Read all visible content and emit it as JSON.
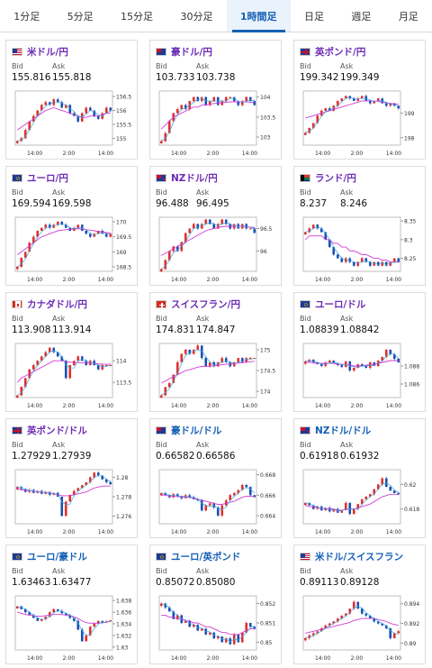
{
  "tabs": [
    "1分足",
    "5分足",
    "15分足",
    "30分足",
    "1時間足",
    "日足",
    "週足",
    "月足"
  ],
  "active_tab": 4,
  "labels": {
    "bid": "Bid",
    "ask": "Ask"
  },
  "cards": [
    {
      "name": "米ドル/円",
      "flag": "us-jp",
      "bid": "155.816",
      "ask": "155.818",
      "ticks": [
        "156.5",
        "156",
        "155.5",
        "155"
      ],
      "tvals": [
        156.5,
        156,
        155.5,
        155
      ],
      "ymin": 154.75,
      "ymax": 156.7,
      "xt": [
        "14:00",
        "2:00",
        "14:00"
      ],
      "seed": 1,
      "path": [
        154.9,
        155.0,
        155.3,
        155.6,
        155.8,
        156.0,
        156.2,
        156.3,
        156.2,
        156.4,
        156.3,
        156.1,
        156.2,
        155.9,
        155.8,
        155.6,
        155.9,
        156.1,
        156.0,
        155.8,
        155.7,
        155.9,
        156.1,
        156.0
      ],
      "ma": [
        155.3,
        155.4,
        155.5,
        155.6,
        155.7,
        155.8,
        155.9,
        156.0,
        156.05,
        156.1,
        156.05,
        156.0,
        155.95,
        155.9,
        155.85,
        155.8,
        155.75,
        155.75,
        155.8,
        155.8,
        155.8,
        155.85,
        155.9,
        155.9
      ]
    },
    {
      "name": "豪ドル/円",
      "flag": "au-jp",
      "bid": "103.733",
      "ask": "103.738",
      "ticks": [
        "104",
        "103.5",
        "103"
      ],
      "tvals": [
        104,
        103.5,
        103
      ],
      "ymin": 102.8,
      "ymax": 104.15,
      "xt": [
        "14:00",
        "2:00",
        "14:00"
      ],
      "seed": 2,
      "path": [
        102.9,
        103.1,
        103.4,
        103.6,
        103.7,
        103.8,
        103.7,
        103.9,
        104.0,
        103.9,
        104.0,
        103.8,
        103.9,
        104.0,
        103.8,
        103.9,
        104.0,
        104.0,
        103.9,
        103.8,
        103.9,
        104.0,
        103.9,
        103.8
      ],
      "ma": [
        103.2,
        103.3,
        103.4,
        103.5,
        103.55,
        103.6,
        103.65,
        103.7,
        103.75,
        103.75,
        103.8,
        103.8,
        103.82,
        103.84,
        103.85,
        103.86,
        103.87,
        103.88,
        103.88,
        103.88,
        103.88,
        103.88,
        103.87,
        103.86
      ]
    },
    {
      "name": "英ポンド/円",
      "flag": "gb-jp",
      "bid": "199.342",
      "ask": "199.349",
      "ticks": [
        "199",
        "198"
      ],
      "tvals": [
        199,
        198
      ],
      "ymin": 197.7,
      "ymax": 199.9,
      "xt": [
        "14:00",
        "2:00",
        "14:00"
      ],
      "seed": 3,
      "path": [
        198.2,
        198.4,
        198.6,
        198.9,
        199.1,
        199.2,
        199.1,
        199.3,
        199.5,
        199.6,
        199.7,
        199.6,
        199.5,
        199.6,
        199.7,
        199.5,
        199.4,
        199.5,
        199.6,
        199.4,
        199.3,
        199.4,
        199.3,
        199.2
      ],
      "ma": [
        198.8,
        198.85,
        198.9,
        198.95,
        199.0,
        199.05,
        199.1,
        199.15,
        199.2,
        199.25,
        199.3,
        199.35,
        199.4,
        199.45,
        199.5,
        199.5,
        199.5,
        199.5,
        199.48,
        199.45,
        199.42,
        199.4,
        199.38,
        199.36
      ]
    },
    {
      "name": "ユーロ/円",
      "flag": "eu-jp",
      "bid": "169.594",
      "ask": "169.598",
      "ticks": [
        "170",
        "169.5",
        "169",
        "168.5"
      ],
      "tvals": [
        170,
        169.5,
        169,
        168.5
      ],
      "ymin": 168.35,
      "ymax": 170.15,
      "xt": [
        "14:00",
        "2:00",
        "14:00"
      ],
      "seed": 4,
      "path": [
        168.5,
        168.8,
        169.0,
        169.3,
        169.5,
        169.7,
        169.8,
        169.9,
        169.8,
        169.9,
        170.0,
        169.9,
        169.8,
        169.7,
        169.8,
        169.9,
        169.7,
        169.6,
        169.5,
        169.6,
        169.7,
        169.6,
        169.5,
        169.6
      ],
      "ma": [
        168.9,
        169.0,
        169.1,
        169.2,
        169.3,
        169.4,
        169.5,
        169.55,
        169.6,
        169.65,
        169.7,
        169.72,
        169.74,
        169.75,
        169.76,
        169.77,
        169.76,
        169.74,
        169.72,
        169.7,
        169.68,
        169.66,
        169.64,
        169.62
      ]
    },
    {
      "name": "NZドル/円",
      "flag": "nz-jp",
      "bid": "96.488",
      "ask": "96.495",
      "ticks": [
        "96.5",
        "96"
      ],
      "tvals": [
        96.5,
        96
      ],
      "ymin": 95.55,
      "ymax": 96.75,
      "xt": [
        "14:00",
        "2:00",
        "14:00"
      ],
      "seed": 5,
      "path": [
        95.6,
        95.8,
        96.0,
        96.1,
        96.0,
        96.2,
        96.4,
        96.5,
        96.6,
        96.5,
        96.6,
        96.7,
        96.6,
        96.5,
        96.6,
        96.7,
        96.6,
        96.5,
        96.6,
        96.5,
        96.6,
        96.5,
        96.5,
        96.4
      ],
      "ma": [
        95.9,
        95.95,
        96.0,
        96.05,
        96.1,
        96.15,
        96.2,
        96.25,
        96.3,
        96.35,
        96.4,
        96.45,
        96.48,
        96.5,
        96.52,
        96.54,
        96.55,
        96.55,
        96.55,
        96.55,
        96.55,
        96.54,
        96.53,
        96.52
      ]
    },
    {
      "name": "ランド/円",
      "flag": "za-jp",
      "bid": "8.237",
      "ask": "8.246",
      "ticks": [
        "8.35",
        "8.3",
        "8.25"
      ],
      "tvals": [
        8.35,
        8.3,
        8.25
      ],
      "ymin": 8.215,
      "ymax": 8.36,
      "xt": [
        "14:00",
        "2:00",
        "14:00"
      ],
      "seed": 6,
      "path": [
        8.32,
        8.33,
        8.34,
        8.33,
        8.32,
        8.3,
        8.28,
        8.26,
        8.25,
        8.24,
        8.25,
        8.24,
        8.23,
        8.24,
        8.25,
        8.24,
        8.23,
        8.24,
        8.23,
        8.24,
        8.23,
        8.24,
        8.25,
        8.24
      ],
      "ma": [
        8.3,
        8.31,
        8.31,
        8.31,
        8.31,
        8.3,
        8.3,
        8.29,
        8.29,
        8.28,
        8.28,
        8.27,
        8.27,
        8.265,
        8.26,
        8.26,
        8.255,
        8.25,
        8.25,
        8.245,
        8.245,
        8.24,
        8.24,
        8.24
      ]
    },
    {
      "name": "カナダドル/円",
      "flag": "ca-jp",
      "bid": "113.908",
      "ask": "113.914",
      "ticks": [
        "114",
        "113.5"
      ],
      "tvals": [
        114,
        113.5
      ],
      "ymin": 113.15,
      "ymax": 114.4,
      "xt": [
        "14:00",
        "2:00",
        "14:00"
      ],
      "seed": 7,
      "path": [
        113.2,
        113.4,
        113.6,
        113.8,
        113.9,
        114.0,
        114.1,
        114.2,
        114.3,
        114.2,
        114.1,
        114.0,
        113.6,
        113.9,
        114.0,
        114.1,
        114.0,
        113.9,
        114.0,
        113.9,
        113.8,
        113.9,
        113.9,
        113.9
      ],
      "ma": [
        113.5,
        113.6,
        113.65,
        113.7,
        113.75,
        113.8,
        113.85,
        113.9,
        113.95,
        114.0,
        114.0,
        114.0,
        113.98,
        113.97,
        113.96,
        113.96,
        113.95,
        113.95,
        113.95,
        113.94,
        113.93,
        113.92,
        113.92,
        113.92
      ]
    },
    {
      "name": "スイスフラン/円",
      "flag": "ch-jp",
      "bid": "174.831",
      "ask": "174.847",
      "ticks": [
        "175",
        "174.5",
        "174"
      ],
      "tvals": [
        175,
        174.5,
        174
      ],
      "ymin": 173.85,
      "ymax": 175.15,
      "xt": [
        "14:00",
        "2:00",
        "14:00"
      ],
      "seed": 8,
      "path": [
        173.9,
        174.1,
        174.2,
        174.4,
        174.7,
        174.9,
        175.0,
        174.9,
        175.0,
        175.1,
        174.8,
        174.6,
        174.7,
        174.6,
        174.7,
        174.8,
        174.7,
        174.6,
        174.7,
        174.8,
        174.7,
        174.8,
        174.8,
        174.8
      ],
      "ma": [
        174.2,
        174.25,
        174.3,
        174.35,
        174.4,
        174.45,
        174.5,
        174.52,
        174.55,
        174.58,
        174.6,
        174.6,
        174.6,
        174.62,
        174.63,
        174.64,
        174.65,
        174.66,
        174.67,
        174.68,
        174.69,
        174.7,
        174.71,
        174.72
      ]
    },
    {
      "name": "ユーロ/ドル",
      "flag": "eu-us",
      "bid": "1.08839",
      "ask": "1.08842",
      "ticks": [
        "1.088",
        "1.086"
      ],
      "tvals": [
        1.088,
        1.086
      ],
      "ymin": 1.0845,
      "ymax": 1.0905,
      "xt": [
        "14:00",
        "2:00",
        "14:00"
      ],
      "seed": 9,
      "path": [
        1.0885,
        1.0887,
        1.0884,
        1.0882,
        1.088,
        1.0884,
        1.0886,
        1.0883,
        1.0881,
        1.0879,
        1.0885,
        1.0875,
        1.0878,
        1.0882,
        1.088,
        1.0878,
        1.0884,
        1.088,
        1.0886,
        1.089,
        1.0898,
        1.0893,
        1.0888,
        1.0884
      ],
      "ma": [
        1.0884,
        1.0884,
        1.0884,
        1.0883,
        1.0883,
        1.0883,
        1.0883,
        1.0883,
        1.0882,
        1.0882,
        1.0881,
        1.0881,
        1.088,
        1.088,
        1.088,
        1.0881,
        1.0881,
        1.0882,
        1.0883,
        1.0884,
        1.0885,
        1.0886,
        1.0886,
        1.0886
      ]
    },
    {
      "name": "英ポンド/ドル",
      "flag": "gb-us",
      "bid": "1.27929",
      "ask": "1.27939",
      "ticks": [
        "1.28",
        "1.278",
        "1.276"
      ],
      "tvals": [
        1.28,
        1.278,
        1.276
      ],
      "ymin": 1.2752,
      "ymax": 1.2808,
      "xt": [
        "14:00",
        "2:00",
        "14:00"
      ],
      "seed": 10,
      "path": [
        1.279,
        1.2788,
        1.2785,
        1.2787,
        1.2784,
        1.2786,
        1.2783,
        1.2785,
        1.2782,
        1.2784,
        1.278,
        1.276,
        1.2775,
        1.2782,
        1.2786,
        1.2789,
        1.2792,
        1.2795,
        1.28,
        1.2805,
        1.2802,
        1.2798,
        1.2795,
        1.2793
      ],
      "ma": [
        1.2788,
        1.2787,
        1.2787,
        1.2786,
        1.2786,
        1.2785,
        1.2785,
        1.2784,
        1.2784,
        1.2783,
        1.2782,
        1.2781,
        1.2781,
        1.2781,
        1.2782,
        1.2783,
        1.2784,
        1.2785,
        1.2787,
        1.2789,
        1.279,
        1.2791,
        1.2791,
        1.2791
      ]
    },
    {
      "name": "豪ドル/ドル",
      "flag": "au-us",
      "bid": "0.66582",
      "ask": "0.66586",
      "ticks": [
        "0.668",
        "0.666",
        "0.664"
      ],
      "tvals": [
        0.668,
        0.666,
        0.664
      ],
      "ymin": 0.6632,
      "ymax": 0.6685,
      "xt": [
        "14:00",
        "2:00",
        "14:00"
      ],
      "seed": 11,
      "path": [
        0.6662,
        0.666,
        0.6658,
        0.6661,
        0.6659,
        0.6657,
        0.666,
        0.6658,
        0.6656,
        0.6655,
        0.6645,
        0.665,
        0.6652,
        0.6648,
        0.664,
        0.665,
        0.6655,
        0.666,
        0.6662,
        0.6665,
        0.667,
        0.6668,
        0.666,
        0.6658
      ],
      "ma": [
        0.666,
        0.666,
        0.6659,
        0.6659,
        0.6659,
        0.6658,
        0.6658,
        0.6658,
        0.6657,
        0.6656,
        0.6655,
        0.6654,
        0.6653,
        0.6652,
        0.6651,
        0.6651,
        0.6652,
        0.6653,
        0.6654,
        0.6656,
        0.6658,
        0.6659,
        0.6659,
        0.6659
      ]
    },
    {
      "name": "NZドル/ドル",
      "flag": "nz-us",
      "bid": "0.61918",
      "ask": "0.61932",
      "ticks": [
        "0.62",
        "0.618"
      ],
      "tvals": [
        0.62,
        0.618
      ],
      "ymin": 0.6168,
      "ymax": 0.6212,
      "xt": [
        "14:00",
        "2:00",
        "14:00"
      ],
      "seed": 12,
      "path": [
        0.6185,
        0.6183,
        0.618,
        0.6182,
        0.6179,
        0.6181,
        0.6178,
        0.618,
        0.6177,
        0.6179,
        0.6185,
        0.6176,
        0.618,
        0.6184,
        0.6188,
        0.619,
        0.6192,
        0.6196,
        0.62,
        0.6205,
        0.6198,
        0.6195,
        0.6193,
        0.6192
      ],
      "ma": [
        0.6183,
        0.6182,
        0.6182,
        0.6181,
        0.6181,
        0.618,
        0.618,
        0.618,
        0.6179,
        0.6179,
        0.618,
        0.618,
        0.618,
        0.6181,
        0.6182,
        0.6183,
        0.6184,
        0.6186,
        0.6188,
        0.619,
        0.6191,
        0.6192,
        0.6192,
        0.6192
      ]
    },
    {
      "name": "ユーロ/豪ドル",
      "flag": "eu-au",
      "bid": "1.63463",
      "ask": "1.63477",
      "ticks": [
        "1.638",
        "1.636",
        "1.634",
        "1.632",
        "1.63"
      ],
      "tvals": [
        1.638,
        1.636,
        1.634,
        1.632,
        1.63
      ],
      "ymin": 1.6295,
      "ymax": 1.6388,
      "xt": [
        "14:00",
        "2:00",
        "14:00"
      ],
      "seed": 13,
      "path": [
        1.637,
        1.6365,
        1.636,
        1.6355,
        1.635,
        1.6345,
        1.6348,
        1.6352,
        1.636,
        1.6365,
        1.6362,
        1.6358,
        1.6355,
        1.635,
        1.6345,
        1.633,
        1.631,
        1.632,
        1.6335,
        1.634,
        1.6345,
        1.6342,
        1.6344,
        1.6346
      ],
      "ma": [
        1.636,
        1.6358,
        1.6356,
        1.6355,
        1.6354,
        1.6353,
        1.6353,
        1.6354,
        1.6355,
        1.6356,
        1.6356,
        1.6356,
        1.6355,
        1.6354,
        1.6352,
        1.6349,
        1.6345,
        1.6342,
        1.6341,
        1.6341,
        1.6341,
        1.6342,
        1.6343,
        1.6344
      ]
    },
    {
      "name": "ユーロ/英ポンド",
      "flag": "eu-gb",
      "bid": "0.85072",
      "ask": "0.85080",
      "ticks": [
        "0.852",
        "0.851",
        "0.85"
      ],
      "tvals": [
        0.852,
        0.851,
        0.85
      ],
      "ymin": 0.8496,
      "ymax": 0.8524,
      "xt": [
        "14:00",
        "2:00",
        "14:00"
      ],
      "seed": 14,
      "path": [
        0.852,
        0.8518,
        0.8516,
        0.8512,
        0.8514,
        0.851,
        0.8511,
        0.8508,
        0.8509,
        0.8506,
        0.8507,
        0.8504,
        0.8505,
        0.8502,
        0.8503,
        0.85,
        0.8502,
        0.8499,
        0.8504,
        0.85,
        0.8505,
        0.851,
        0.8508,
        0.8507
      ],
      "ma": [
        0.8514,
        0.8514,
        0.8513,
        0.8513,
        0.8512,
        0.8512,
        0.8511,
        0.8511,
        0.851,
        0.851,
        0.8509,
        0.8508,
        0.8508,
        0.8507,
        0.8506,
        0.8505,
        0.8505,
        0.8504,
        0.8504,
        0.8504,
        0.8505,
        0.8506,
        0.8507,
        0.8507
      ]
    },
    {
      "name": "米ドル/スイスフラン",
      "flag": "us-ch",
      "bid": "0.89113",
      "ask": "0.89128",
      "ticks": [
        "0.894",
        "0.892",
        "0.89"
      ],
      "tvals": [
        0.894,
        0.892,
        0.89
      ],
      "ymin": 0.8893,
      "ymax": 0.8948,
      "xt": [
        "14:00",
        "2:00",
        "14:00"
      ],
      "seed": 15,
      "path": [
        0.8905,
        0.8908,
        0.891,
        0.8912,
        0.8915,
        0.8918,
        0.892,
        0.8922,
        0.8925,
        0.8928,
        0.893,
        0.8935,
        0.8942,
        0.8935,
        0.893,
        0.8928,
        0.8925,
        0.8922,
        0.892,
        0.8918,
        0.8915,
        0.8905,
        0.891,
        0.8912
      ],
      "ma": [
        0.891,
        0.8911,
        0.8912,
        0.8913,
        0.8914,
        0.8915,
        0.8916,
        0.8917,
        0.8918,
        0.8919,
        0.892,
        0.8921,
        0.8923,
        0.8924,
        0.8925,
        0.8925,
        0.8925,
        0.8925,
        0.8924,
        0.8923,
        0.8922,
        0.892,
        0.8919,
        0.8918
      ]
    }
  ]
}
